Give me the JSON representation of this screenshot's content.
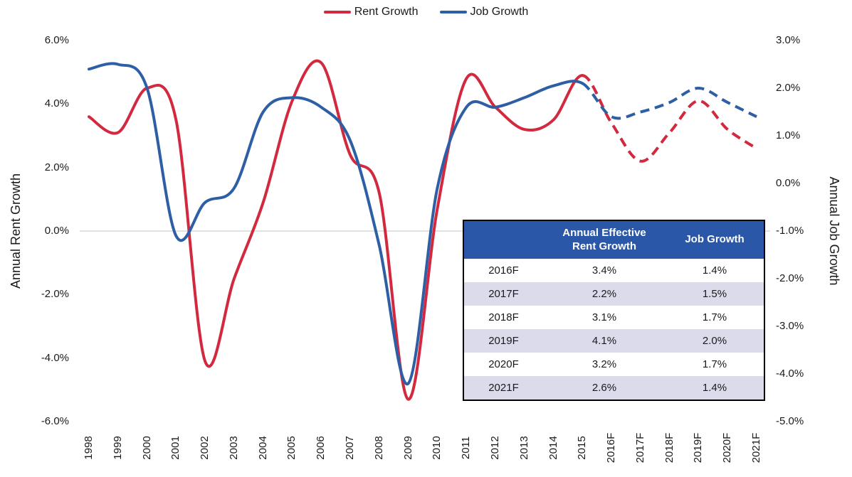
{
  "chart": {
    "legend": [
      {
        "label": "Rent Growth",
        "color": "#d2293f"
      },
      {
        "label": "Job Growth",
        "color": "#2e5fa5"
      }
    ],
    "left_axis": {
      "title": "Annual Rent Growth",
      "ticks": [
        "6.0%",
        "4.0%",
        "2.0%",
        "0.0%",
        "-2.0%",
        "-4.0%",
        "-6.0%"
      ]
    },
    "right_axis": {
      "title": "Annual Job Growth",
      "ticks": [
        "3.0%",
        "2.0%",
        "1.0%",
        "0.0%",
        "-1.0%",
        "-2.0%",
        "-3.0%",
        "-4.0%",
        "-5.0%"
      ]
    }
  },
  "chart_data": {
    "type": "line",
    "title": "",
    "categories": [
      "1998",
      "1999",
      "2000",
      "2001",
      "2002",
      "2003",
      "2004",
      "2005",
      "2006",
      "2007",
      "2008",
      "2009",
      "2010",
      "2011",
      "2012",
      "2013",
      "2014",
      "2015",
      "2016F",
      "2017F",
      "2018F",
      "2019F",
      "2020F",
      "2021F"
    ],
    "series": [
      {
        "name": "Rent Growth",
        "axis": "left",
        "color": "#d2293f",
        "solid_through": "2015",
        "values": [
          3.6,
          3.1,
          4.5,
          3.5,
          -4.1,
          -1.5,
          0.9,
          4.1,
          5.3,
          2.4,
          1.2,
          -5.3,
          0.7,
          4.8,
          3.9,
          3.2,
          3.5,
          4.9,
          3.4,
          2.2,
          3.1,
          4.1,
          3.2,
          2.6
        ]
      },
      {
        "name": "Job Growth",
        "axis": "right",
        "color": "#2e5fa5",
        "solid_through": "2015",
        "values": [
          2.4,
          2.5,
          2.0,
          -1.1,
          -0.4,
          -0.1,
          1.5,
          1.8,
          1.6,
          0.9,
          -1.3,
          -4.2,
          -0.1,
          1.6,
          1.6,
          1.8,
          2.05,
          2.1,
          1.4,
          1.5,
          1.7,
          2.0,
          1.7,
          1.4
        ]
      }
    ],
    "left_ylim": [
      -6,
      6
    ],
    "right_ylim": [
      -5,
      3
    ],
    "grid": "zero-line-only",
    "zero_line_color": "#d9d9d9",
    "legend_position": "top-center",
    "forecast_style": "dashed"
  },
  "table": {
    "headers": [
      "",
      "Annual Effective Rent Growth",
      "Job Growth"
    ],
    "rows": [
      [
        "2016F",
        "3.4%",
        "1.4%"
      ],
      [
        "2017F",
        "2.2%",
        "1.5%"
      ],
      [
        "2018F",
        "3.1%",
        "1.7%"
      ],
      [
        "2019F",
        "4.1%",
        "2.0%"
      ],
      [
        "2020F",
        "3.2%",
        "1.7%"
      ],
      [
        "2021F",
        "2.6%",
        "1.4%"
      ]
    ],
    "header_bg": "#2a57a8",
    "header_text_color": "#ffffff",
    "row_bg": "#ffffff",
    "alt_row_bg": "#dcdbec",
    "border_color": "#000000"
  }
}
